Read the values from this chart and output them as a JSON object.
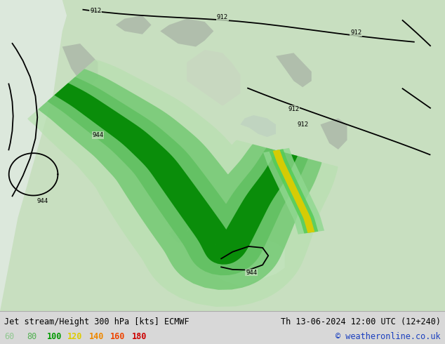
{
  "title_left": "Jet stream/Height 300 hPa [kts] ECMWF",
  "title_right": "Th 13-06-2024 12:00 UTC (12+240)",
  "copyright": "© weatheronline.co.uk",
  "legend_values": [
    "60",
    "80",
    "100",
    "120",
    "140",
    "160",
    "180"
  ],
  "legend_colors": [
    "#90c890",
    "#50b050",
    "#009900",
    "#ddcc00",
    "#ee8800",
    "#ee4400",
    "#cc0000"
  ],
  "bg_color": "#d8d8d8",
  "land_color": "#c8dfc0",
  "ocean_color": "#dce8dc",
  "fig_width": 6.34,
  "fig_height": 4.9,
  "dpi": 100,
  "bottom_bar_color": "#e8e8e8",
  "title_fontsize": 8.5,
  "legend_fontsize": 8.5,
  "copyright_fontsize": 8.5,
  "jet_outer_color": "#b8e0b0",
  "jet_mid_color": "#60c060",
  "jet_core_color": "#008800",
  "jet2_green_color": "#90d890",
  "jet2_yellow_color": "#ddcc00",
  "contour_color": "black",
  "gray_area_color": "#a0a8a0"
}
